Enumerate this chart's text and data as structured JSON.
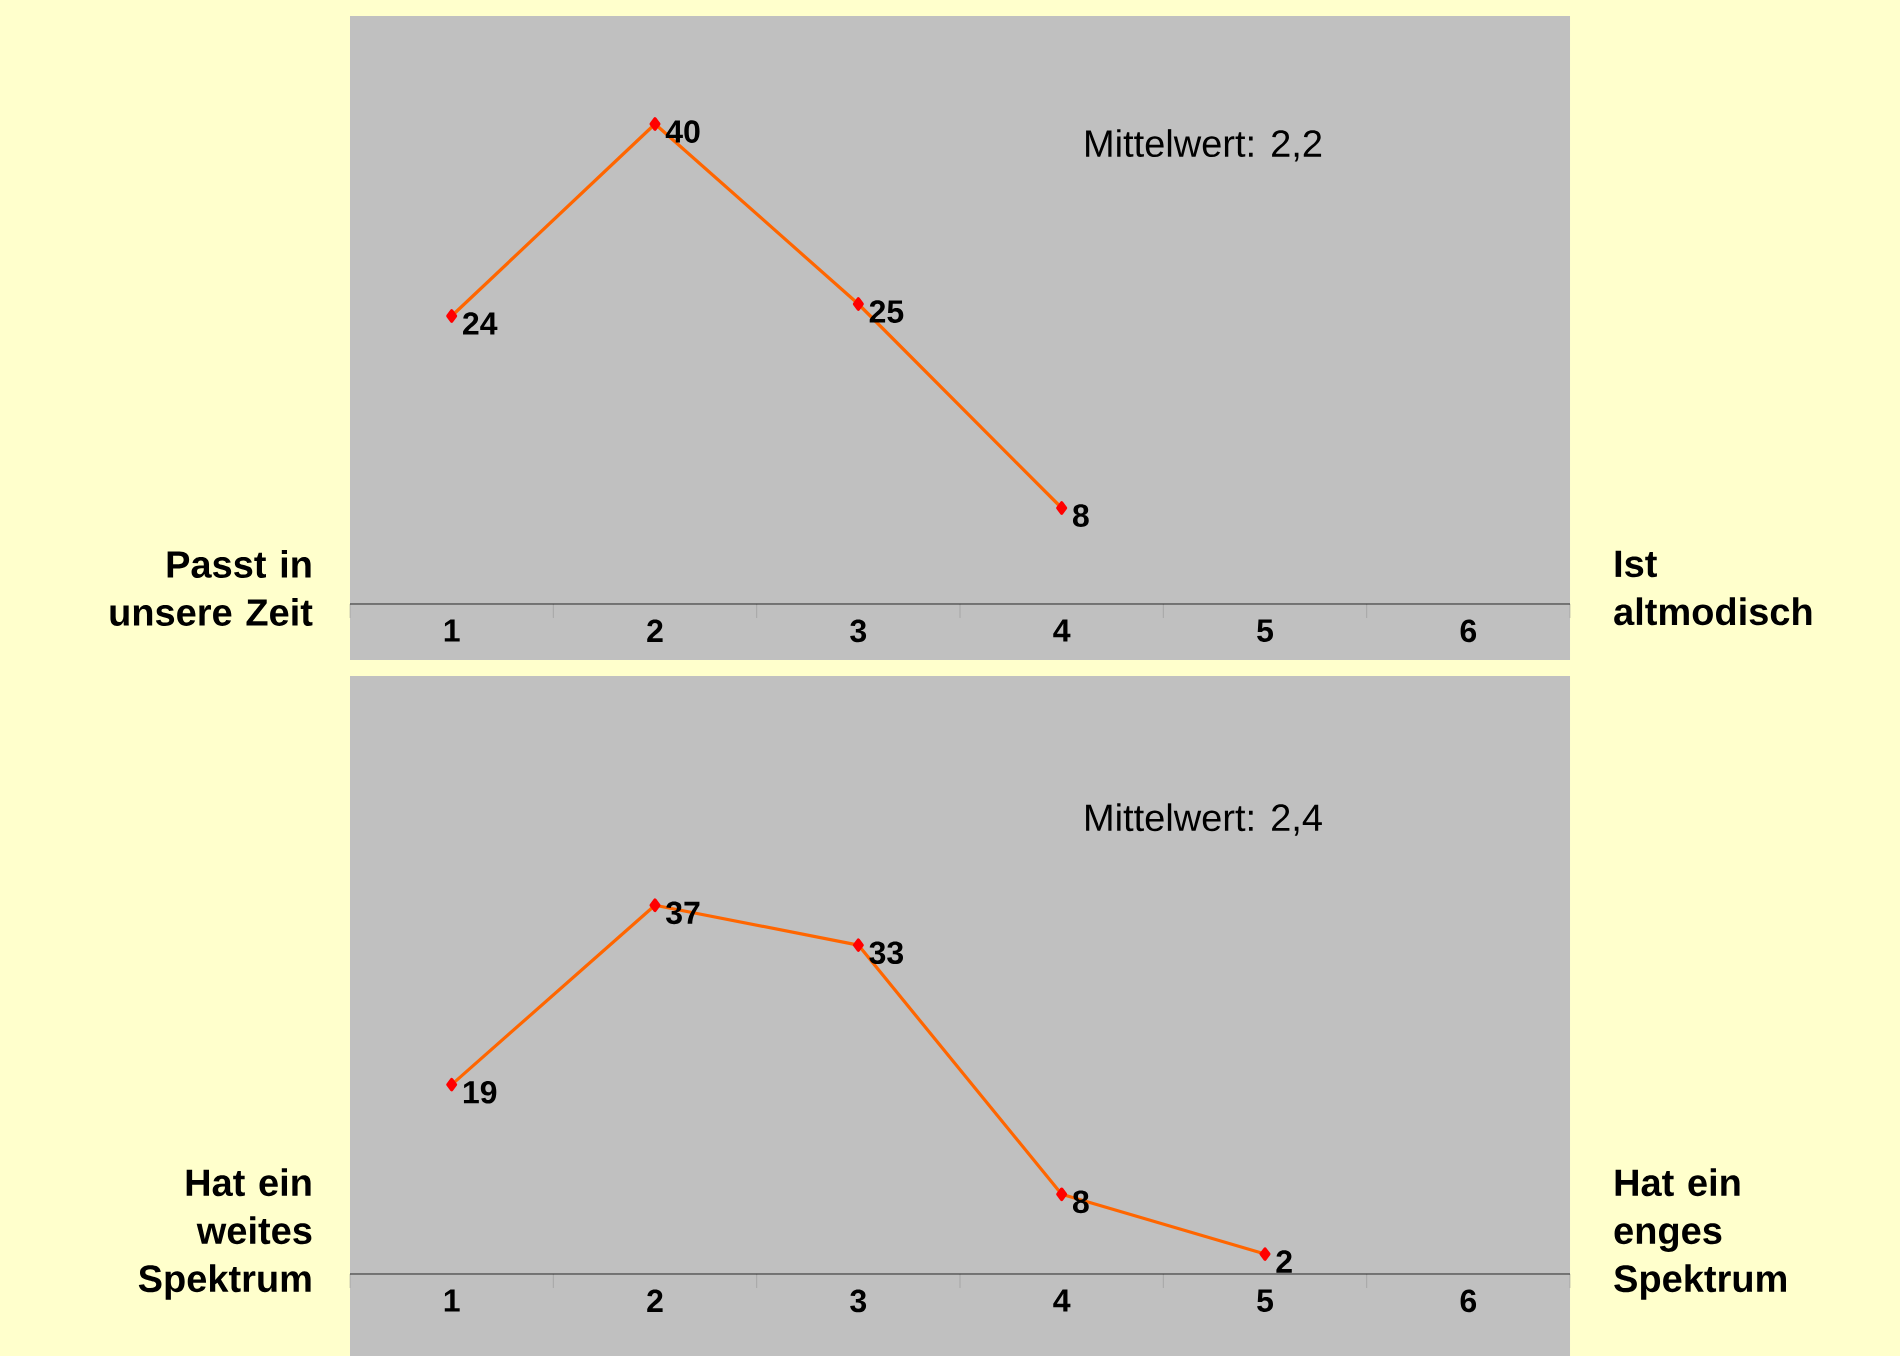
{
  "chart_data": [
    {
      "type": "line",
      "categories": [
        "1",
        "2",
        "3",
        "4",
        "5",
        "6"
      ],
      "series": [
        {
          "color": "#ff6600",
          "values": [
            24,
            40,
            25,
            8,
            null,
            null
          ]
        }
      ],
      "ylim": [
        0,
        49
      ],
      "tick_labels": "x",
      "data_labels": true,
      "marker": "diamond",
      "annotations": [
        "Mittelwert: 2,2",
        "Passt in unsere Zeit",
        "Ist altmodisch"
      ]
    },
    {
      "type": "line",
      "categories": [
        "1",
        "2",
        "3",
        "4",
        "5",
        "6"
      ],
      "series": [
        {
          "color": "#ff6600",
          "values": [
            19,
            37,
            33,
            8,
            2,
            null
          ]
        }
      ],
      "ylim": [
        0,
        60
      ],
      "tick_labels": "x",
      "data_labels": true,
      "marker": "diamond",
      "annotations": [
        "Mittelwert: 2,4",
        "Hat ein weites Spektrum",
        "Hat ein enges Spektrum"
      ]
    }
  ]
}
